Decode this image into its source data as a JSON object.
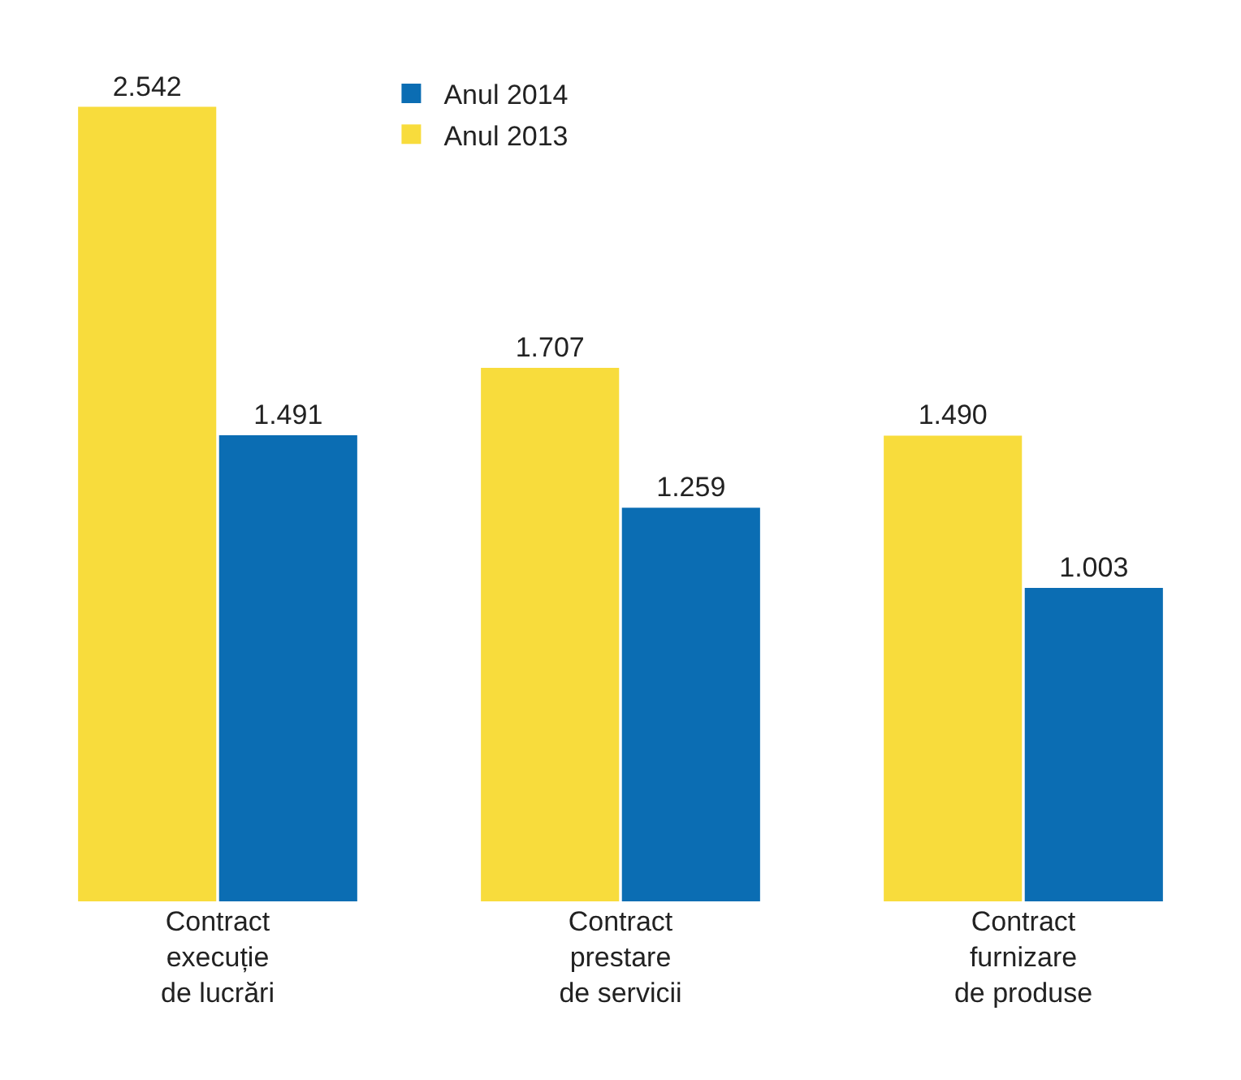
{
  "chart_data": {
    "type": "bar",
    "categories": [
      "Contract\nexecuție\nde lucrări",
      "Contract\nprestare\nde servicii",
      "Contract\nfurnizare\nde produse"
    ],
    "series": [
      {
        "name": "Anul 2013",
        "color": "#f8dc3c",
        "values": [
          2542,
          1707,
          1490
        ],
        "value_labels": [
          "2.542",
          "1.707",
          "1.490"
        ]
      },
      {
        "name": "Anul 2014",
        "color": "#0b6db3",
        "values": [
          1491,
          1259,
          1003
        ],
        "value_labels": [
          "1.491",
          "1.259",
          "1.003"
        ]
      }
    ],
    "legend": "top",
    "grid": false
  }
}
